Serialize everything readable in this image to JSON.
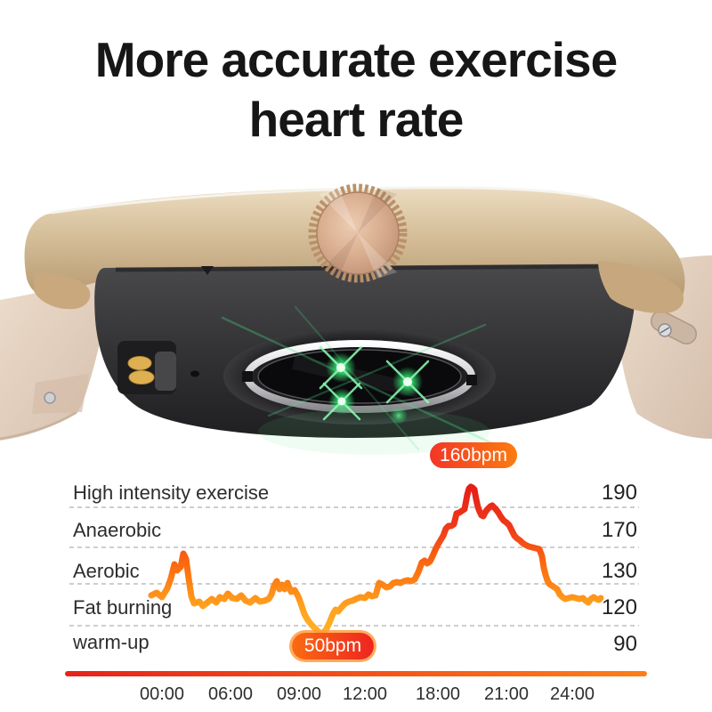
{
  "title": {
    "line1": "More accurate exercise",
    "line2": "heart rate"
  },
  "watch": {
    "parts": [
      "gold-case",
      "rose-gold-crown",
      "beige-straps",
      "charging-contacts",
      "microphone-hole",
      "optical-heart-rate-sensor",
      "green-led-lights"
    ],
    "colors": {
      "case_gold": "#d2bb95",
      "crown_rose_gold": "#d9ae90",
      "body_dark": "#2c2c2e",
      "strap_beige": "#e4d3c2",
      "led_green": "#3ce878",
      "contact_gold": "#dfb052"
    }
  },
  "chart": {
    "zones": [
      {
        "label": "High intensity exercise",
        "value": "190"
      },
      {
        "label": "Anaerobic",
        "value": "170"
      },
      {
        "label": "Aerobic",
        "value": "130"
      },
      {
        "label": "Fat burning",
        "value": "120"
      },
      {
        "label": "warm-up",
        "value": "90"
      }
    ],
    "badges": {
      "max": "160bpm",
      "min": "50bpm"
    },
    "x_ticks": [
      "00:00",
      "06:00",
      "09:00",
      "12:00",
      "18:00",
      "21:00",
      "24:00"
    ]
  },
  "chart_data": {
    "type": "line",
    "title": "24-hour exercise heart rate trace",
    "x_axis": {
      "tick_labels": [
        "00:00",
        "06:00",
        "09:00",
        "12:00",
        "18:00",
        "21:00",
        "24:00"
      ]
    },
    "y_axis": {
      "tick_labels": [
        "190",
        "170",
        "130",
        "120",
        "90"
      ],
      "zone_labels": [
        "High intensity exercise",
        "Anaerobic",
        "Aerobic",
        "Fat burning",
        "warm-up"
      ],
      "grid": "dashed horizontal lines between zones"
    },
    "annotations": [
      {
        "label": "160bpm",
        "type": "peak",
        "near_x": "21:00"
      },
      {
        "label": "50bpm",
        "type": "minimum",
        "near_x": "10:30"
      }
    ],
    "line_gradient": [
      "#e31a17",
      "#ef3a1a",
      "#fb6c10",
      "#ffa01e",
      "#ffb42a"
    ],
    "axis_bar_gradient": [
      "#e6231a",
      "#ff7e17"
    ],
    "badge_gradients": {
      "max": [
        "#f43527",
        "#fb7c10"
      ],
      "min": [
        "#fa6c12",
        "#ef2420"
      ]
    },
    "series": [
      {
        "name": "heart rate",
        "points": [
          [
            170,
            189
          ],
          [
            176,
            186
          ],
          [
            182,
            191
          ],
          [
            188,
            181
          ],
          [
            192,
            170
          ],
          [
            196,
            154
          ],
          [
            199,
            161
          ],
          [
            203,
            157
          ],
          [
            206,
            142
          ],
          [
            209,
            148
          ],
          [
            212,
            170
          ],
          [
            215,
            190
          ],
          [
            218,
            198
          ],
          [
            224,
            196
          ],
          [
            228,
            201
          ],
          [
            233,
            197
          ],
          [
            238,
            193
          ],
          [
            243,
            197
          ],
          [
            247,
            191
          ],
          [
            252,
            193
          ],
          [
            256,
            187
          ],
          [
            261,
            192
          ],
          [
            266,
            193
          ],
          [
            271,
            189
          ],
          [
            276,
            195
          ],
          [
            281,
            197
          ],
          [
            287,
            192
          ],
          [
            292,
            196
          ],
          [
            297,
            195
          ],
          [
            302,
            193
          ],
          [
            305,
            188
          ],
          [
            308,
            178
          ],
          [
            311,
            173
          ],
          [
            314,
            182
          ],
          [
            317,
            177
          ],
          [
            320,
            182
          ],
          [
            323,
            175
          ],
          [
            327,
            185
          ],
          [
            331,
            183
          ],
          [
            335,
            190
          ],
          [
            338,
            198
          ],
          [
            342,
            210
          ],
          [
            346,
            217
          ],
          [
            350,
            222
          ],
          [
            354,
            226
          ],
          [
            358,
            230
          ],
          [
            362,
            232
          ],
          [
            366,
            228
          ],
          [
            370,
            220
          ],
          [
            374,
            210
          ],
          [
            377,
            205
          ],
          [
            380,
            207
          ],
          [
            384,
            202
          ],
          [
            388,
            198
          ],
          [
            392,
            196
          ],
          [
            396,
            195
          ],
          [
            400,
            193
          ],
          [
            405,
            191
          ],
          [
            410,
            192
          ],
          [
            414,
            188
          ],
          [
            418,
            190
          ],
          [
            422,
            189
          ],
          [
            426,
            175
          ],
          [
            430,
            177
          ],
          [
            434,
            180
          ],
          [
            438,
            179
          ],
          [
            442,
            175
          ],
          [
            446,
            174
          ],
          [
            450,
            175
          ],
          [
            454,
            173
          ],
          [
            458,
            172
          ],
          [
            462,
            173
          ],
          [
            466,
            171
          ],
          [
            470,
            163
          ],
          [
            474,
            152
          ],
          [
            477,
            150
          ],
          [
            480,
            153
          ],
          [
            483,
            151
          ],
          [
            486,
            145
          ],
          [
            489,
            138
          ],
          [
            492,
            132
          ],
          [
            495,
            127
          ],
          [
            498,
            122
          ],
          [
            501,
            114
          ],
          [
            504,
            111
          ],
          [
            507,
            111
          ],
          [
            510,
            109
          ],
          [
            513,
            97
          ],
          [
            516,
            96
          ],
          [
            519,
            94
          ],
          [
            522,
            92
          ],
          [
            525,
            76
          ],
          [
            527,
            69
          ],
          [
            529,
            67
          ],
          [
            531,
            68
          ],
          [
            533,
            70
          ],
          [
            535,
            81
          ],
          [
            537,
            90
          ],
          [
            539,
            95
          ],
          [
            541,
            99
          ],
          [
            543,
            100
          ],
          [
            545,
            96
          ],
          [
            547,
            93
          ],
          [
            549,
            91
          ],
          [
            551,
            89
          ],
          [
            553,
            88
          ],
          [
            555,
            90
          ],
          [
            557,
            92
          ],
          [
            560,
            96
          ],
          [
            563,
            101
          ],
          [
            566,
            105
          ],
          [
            569,
            107
          ],
          [
            572,
            110
          ],
          [
            575,
            116
          ],
          [
            578,
            122
          ],
          [
            581,
            125
          ],
          [
            584,
            127
          ],
          [
            587,
            130
          ],
          [
            590,
            132
          ],
          [
            594,
            134
          ],
          [
            598,
            135
          ],
          [
            602,
            136
          ],
          [
            606,
            137
          ],
          [
            609,
            145
          ],
          [
            611,
            158
          ],
          [
            613,
            166
          ],
          [
            615,
            172
          ],
          [
            617,
            176
          ],
          [
            620,
            178
          ],
          [
            623,
            180
          ],
          [
            626,
            182
          ],
          [
            629,
            188
          ],
          [
            632,
            191
          ],
          [
            635,
            193
          ],
          [
            639,
            192
          ],
          [
            643,
            191
          ],
          [
            647,
            192
          ],
          [
            651,
            193
          ],
          [
            655,
            192
          ],
          [
            658,
            195
          ],
          [
            661,
            197
          ],
          [
            664,
            193
          ],
          [
            667,
            191
          ],
          [
            670,
            193
          ],
          [
            673,
            194
          ],
          [
            675,
            192
          ]
        ]
      }
    ]
  }
}
